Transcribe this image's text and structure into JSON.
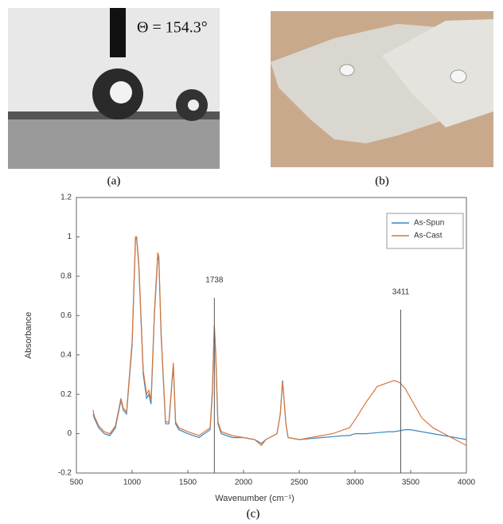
{
  "panels": {
    "a": {
      "label": "(a)",
      "annotation": "Θ = 154.3°"
    },
    "b": {
      "label": "(b)"
    }
  },
  "chart_data": {
    "type": "line",
    "caption": "(c)",
    "xlabel": "Wavenumber (cm⁻¹)",
    "ylabel": "Absorbance",
    "x": [
      650,
      660,
      700,
      750,
      800,
      850,
      900,
      920,
      950,
      1000,
      1030,
      1040,
      1060,
      1100,
      1130,
      1150,
      1170,
      1200,
      1230,
      1240,
      1260,
      1300,
      1330,
      1370,
      1390,
      1420,
      1500,
      1600,
      1700,
      1720,
      1738,
      1750,
      1770,
      1800,
      1900,
      2000,
      2100,
      2160,
      2200,
      2300,
      2330,
      2350,
      2360,
      2380,
      2400,
      2500,
      2600,
      2700,
      2800,
      2900,
      2950,
      3000,
      3100,
      3200,
      3300,
      3350,
      3400,
      3450,
      3500,
      3600,
      3700,
      3800,
      3900,
      4000
    ],
    "series": [
      {
        "name": "As-Spun",
        "color": "#3a87c0",
        "values": [
          0.1,
          0.08,
          0.03,
          0,
          -0.01,
          0.03,
          0.17,
          0.12,
          0.1,
          0.45,
          0.98,
          1.0,
          0.85,
          0.3,
          0.18,
          0.2,
          0.15,
          0.6,
          0.9,
          0.88,
          0.5,
          0.05,
          0.05,
          0.35,
          0.05,
          0.02,
          0,
          -0.02,
          0.02,
          0.2,
          0.55,
          0.4,
          0.05,
          0,
          -0.02,
          -0.02,
          -0.03,
          -0.05,
          -0.03,
          0,
          0.1,
          0.27,
          0.2,
          0.05,
          -0.02,
          -0.03,
          -0.025,
          -0.02,
          -0.015,
          -0.01,
          -0.01,
          0,
          0,
          0.005,
          0.01,
          0.01,
          0.015,
          0.02,
          0.02,
          0.01,
          0,
          -0.01,
          -0.02,
          -0.03
        ]
      },
      {
        "name": "As-Cast",
        "color": "#d9773a",
        "values": [
          0.12,
          0.09,
          0.04,
          0.01,
          0,
          0.04,
          0.18,
          0.13,
          0.11,
          0.47,
          1.0,
          1.0,
          0.87,
          0.32,
          0.2,
          0.22,
          0.17,
          0.62,
          0.92,
          0.9,
          0.52,
          0.06,
          0.06,
          0.36,
          0.06,
          0.03,
          0.01,
          -0.01,
          0.03,
          0.22,
          0.55,
          0.42,
          0.06,
          0.01,
          -0.01,
          -0.02,
          -0.03,
          -0.06,
          -0.03,
          0,
          0.1,
          0.26,
          0.2,
          0.05,
          -0.02,
          -0.03,
          -0.02,
          -0.01,
          0,
          0.02,
          0.03,
          0.07,
          0.16,
          0.24,
          0.26,
          0.27,
          0.26,
          0.23,
          0.18,
          0.08,
          0.03,
          0,
          -0.03,
          -0.06
        ]
      }
    ],
    "xlim": [
      500,
      4000
    ],
    "xticks": [
      500,
      1000,
      1500,
      2000,
      2500,
      3000,
      3500,
      4000
    ],
    "ylim": [
      -0.2,
      1.2
    ],
    "yticks": [
      -0.2,
      0,
      0.2,
      0.4,
      0.6,
      0.8,
      1,
      1.2
    ],
    "legend": "upper right",
    "annotations": [
      {
        "x": 1738,
        "y": 0.69
      },
      {
        "x": 3411,
        "y": 0.63
      }
    ]
  }
}
